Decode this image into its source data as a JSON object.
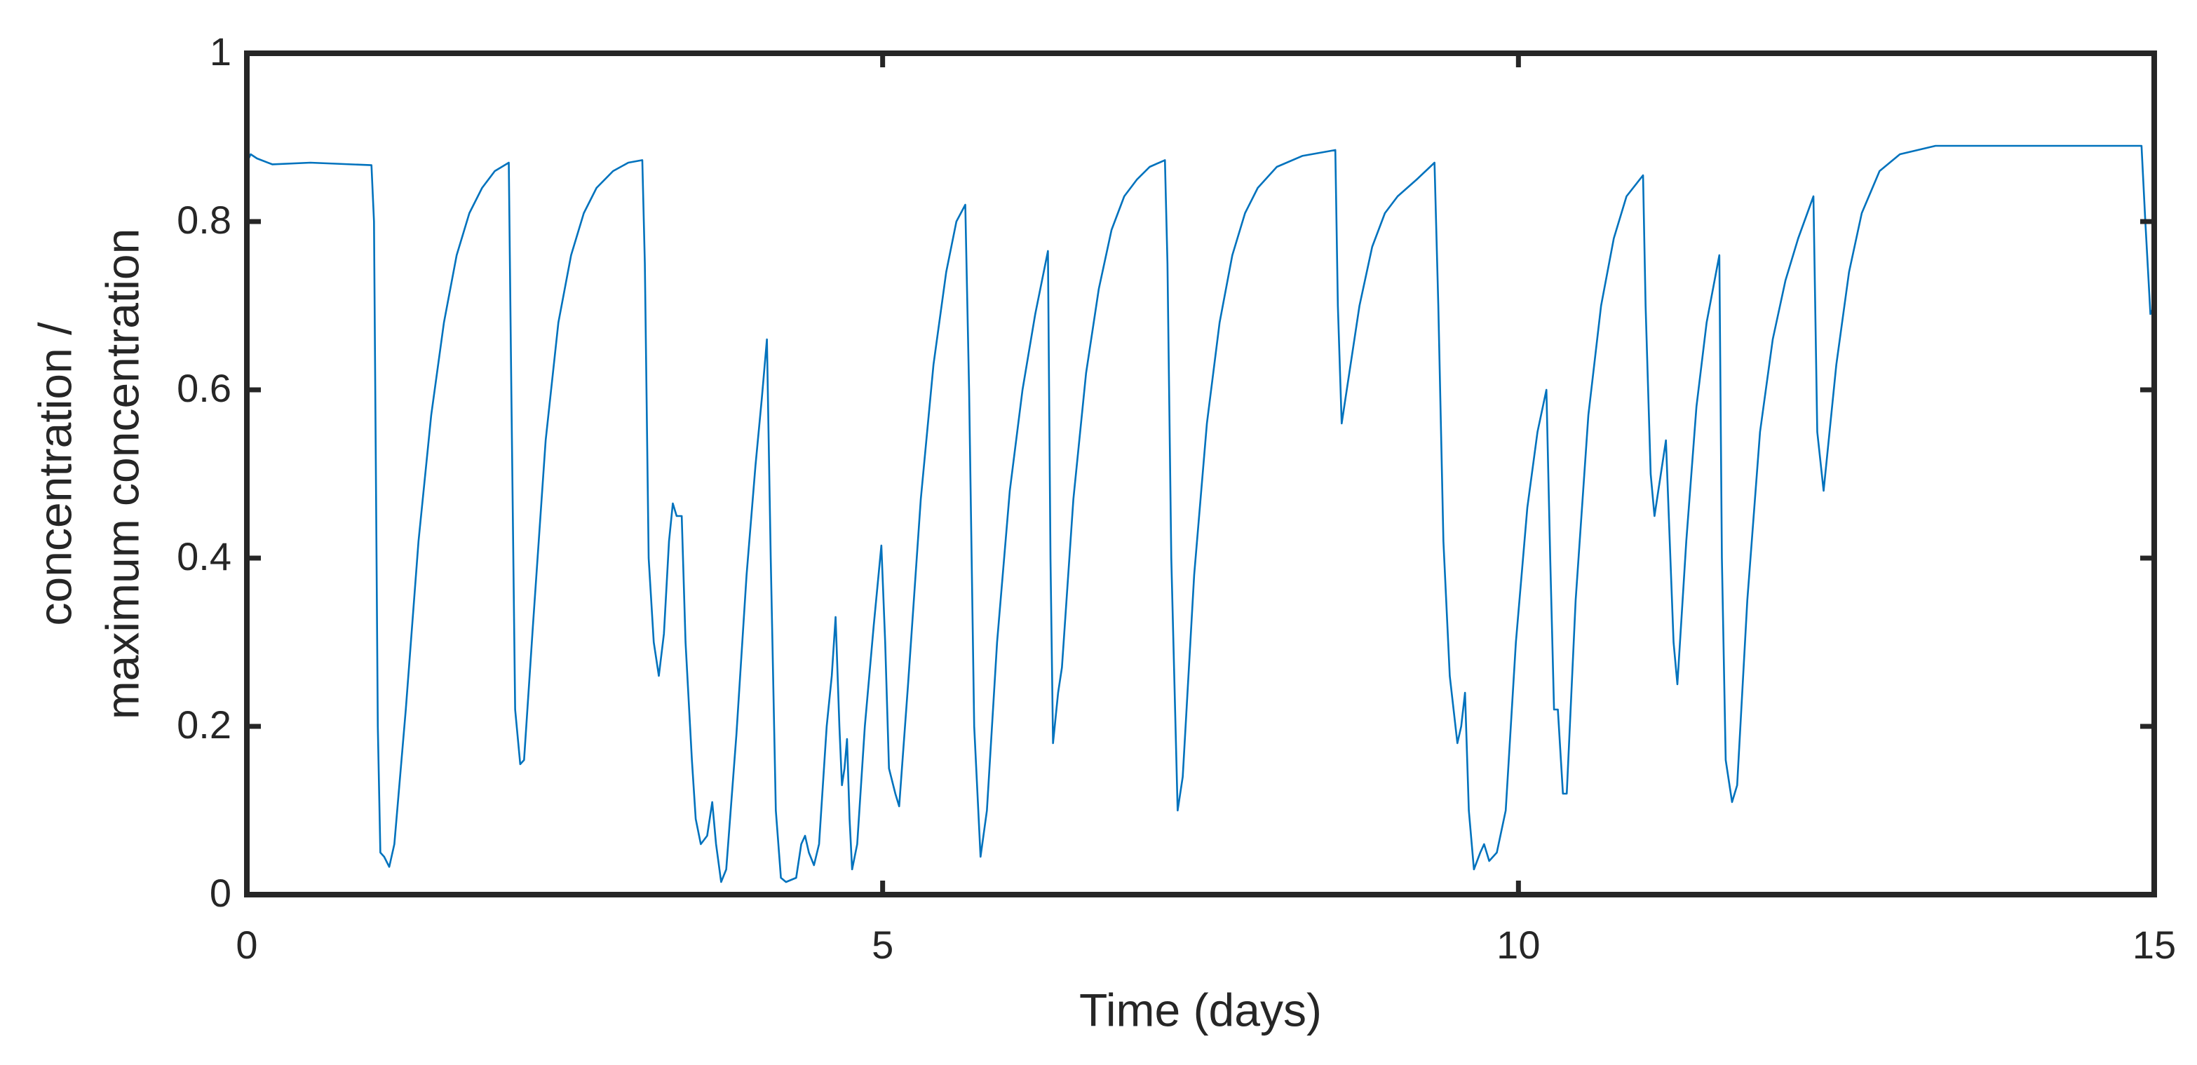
{
  "chart_data": {
    "type": "line",
    "xlabel": "Time (days)",
    "ylabel": [
      "concentration /",
      "maximum concentration"
    ],
    "xlim": [
      0,
      15
    ],
    "ylim": [
      0,
      1
    ],
    "xticks": [
      0,
      5,
      10,
      15
    ],
    "yticks": [
      0,
      0.2,
      0.4,
      0.6,
      0.8,
      1
    ],
    "color": "#0072bd",
    "x": [
      0,
      0.03,
      0.08,
      0.2,
      0.5,
      0.98,
      1.0,
      1.03,
      1.05,
      1.08,
      1.12,
      1.16,
      1.25,
      1.35,
      1.45,
      1.55,
      1.65,
      1.75,
      1.85,
      1.95,
      2.06,
      2.08,
      2.11,
      2.15,
      2.18,
      2.25,
      2.35,
      2.45,
      2.55,
      2.65,
      2.75,
      2.88,
      3.0,
      3.11,
      3.13,
      3.16,
      3.2,
      3.24,
      3.28,
      3.32,
      3.35,
      3.38,
      3.42,
      3.45,
      3.5,
      3.53,
      3.57,
      3.62,
      3.66,
      3.69,
      3.73,
      3.77,
      3.85,
      3.93,
      4.0,
      4.05,
      4.09,
      4.12,
      4.16,
      4.2,
      4.24,
      4.32,
      4.36,
      4.39,
      4.42,
      4.46,
      4.5,
      4.56,
      4.6,
      4.63,
      4.66,
      4.68,
      4.7,
      4.72,
      4.74,
      4.76,
      4.8,
      4.86,
      4.93,
      4.99,
      5.02,
      5.05,
      5.1,
      5.13,
      5.2,
      5.3,
      5.4,
      5.5,
      5.58,
      5.65,
      5.68,
      5.72,
      5.77,
      5.82,
      5.9,
      6.0,
      6.1,
      6.2,
      6.3,
      6.32,
      6.34,
      6.38,
      6.41,
      6.5,
      6.6,
      6.7,
      6.8,
      6.9,
      7.0,
      7.1,
      7.22,
      7.24,
      7.27,
      7.32,
      7.36,
      7.45,
      7.55,
      7.65,
      7.75,
      7.85,
      7.95,
      8.1,
      8.3,
      8.56,
      8.58,
      8.61,
      8.65,
      8.75,
      8.85,
      8.95,
      9.05,
      9.2,
      9.34,
      9.37,
      9.41,
      9.46,
      9.52,
      9.55,
      9.58,
      9.61,
      9.65,
      9.7,
      9.73,
      9.77,
      9.83,
      9.9,
      9.98,
      10.07,
      10.15,
      10.22,
      10.25,
      10.28,
      10.31,
      10.35,
      10.38,
      10.45,
      10.55,
      10.65,
      10.75,
      10.85,
      10.98,
      11.0,
      11.04,
      11.07,
      11.12,
      11.16,
      11.19,
      11.22,
      11.25,
      11.32,
      11.4,
      11.48,
      11.58,
      11.6,
      11.63,
      11.68,
      11.72,
      11.8,
      11.9,
      12.0,
      12.1,
      12.2,
      12.32,
      12.35,
      12.4,
      12.5,
      12.6,
      12.7,
      12.84,
      13.0,
      13.28,
      13.6,
      14.0,
      14.4,
      14.9,
      14.93,
      14.97,
      15.0
    ],
    "values": [
      0.87,
      0.88,
      0.875,
      0.868,
      0.87,
      0.867,
      0.8,
      0.2,
      0.05,
      0.045,
      0.033,
      0.06,
      0.22,
      0.42,
      0.57,
      0.68,
      0.76,
      0.81,
      0.84,
      0.86,
      0.87,
      0.6,
      0.22,
      0.155,
      0.16,
      0.32,
      0.54,
      0.68,
      0.76,
      0.81,
      0.84,
      0.86,
      0.87,
      0.873,
      0.75,
      0.4,
      0.3,
      0.26,
      0.31,
      0.42,
      0.465,
      0.45,
      0.45,
      0.3,
      0.16,
      0.09,
      0.06,
      0.07,
      0.11,
      0.06,
      0.015,
      0.03,
      0.19,
      0.38,
      0.51,
      0.59,
      0.66,
      0.4,
      0.1,
      0.02,
      0.015,
      0.02,
      0.06,
      0.07,
      0.05,
      0.035,
      0.06,
      0.2,
      0.26,
      0.33,
      0.2,
      0.13,
      0.15,
      0.185,
      0.09,
      0.03,
      0.06,
      0.2,
      0.32,
      0.415,
      0.3,
      0.15,
      0.12,
      0.105,
      0.25,
      0.47,
      0.63,
      0.74,
      0.8,
      0.82,
      0.6,
      0.2,
      0.045,
      0.1,
      0.3,
      0.48,
      0.6,
      0.69,
      0.765,
      0.4,
      0.18,
      0.24,
      0.27,
      0.47,
      0.62,
      0.72,
      0.79,
      0.83,
      0.85,
      0.865,
      0.873,
      0.75,
      0.4,
      0.1,
      0.14,
      0.38,
      0.56,
      0.68,
      0.76,
      0.81,
      0.84,
      0.865,
      0.878,
      0.885,
      0.7,
      0.56,
      0.6,
      0.7,
      0.77,
      0.81,
      0.83,
      0.85,
      0.87,
      0.7,
      0.42,
      0.26,
      0.18,
      0.2,
      0.24,
      0.1,
      0.03,
      0.05,
      0.06,
      0.04,
      0.05,
      0.1,
      0.3,
      0.46,
      0.55,
      0.6,
      0.4,
      0.22,
      0.22,
      0.12,
      0.12,
      0.35,
      0.57,
      0.7,
      0.78,
      0.83,
      0.855,
      0.7,
      0.5,
      0.45,
      0.5,
      0.54,
      0.42,
      0.3,
      0.25,
      0.42,
      0.58,
      0.68,
      0.76,
      0.4,
      0.16,
      0.11,
      0.13,
      0.35,
      0.55,
      0.66,
      0.73,
      0.78,
      0.83,
      0.55,
      0.48,
      0.63,
      0.74,
      0.81,
      0.86,
      0.88,
      0.89,
      0.89,
      0.89,
      0.89,
      0.89,
      0.8,
      0.69,
      0.7
    ]
  }
}
